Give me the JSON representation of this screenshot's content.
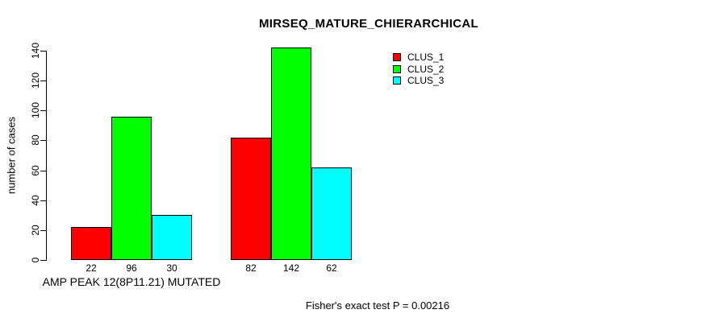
{
  "chart_data": {
    "type": "bar",
    "title": "MIRSEQ_MATURE_CHIERARCHICAL",
    "ylabel": "number of cases",
    "xlabel": "AMP PEAK 12(8P11.21) MUTATED",
    "annotation": "Fisher's exact test P = 0.00216",
    "categories": [
      "AMP PEAK 12(8P11.21) MUTATED",
      ""
    ],
    "series": [
      {
        "name": "CLUS_1",
        "color": "#FF0000",
        "values": [
          22,
          82
        ]
      },
      {
        "name": "CLUS_2",
        "color": "#00FF00",
        "values": [
          96,
          142
        ]
      },
      {
        "name": "CLUS_3",
        "color": "#00FFFF",
        "values": [
          30,
          62
        ]
      }
    ],
    "bar_labels": [
      [
        "22",
        "96",
        "30"
      ],
      [
        "82",
        "142",
        "62"
      ]
    ],
    "ylim": [
      0,
      140
    ],
    "yticks": [
      0,
      20,
      40,
      60,
      80,
      100,
      120,
      140
    ],
    "grid": false,
    "legend_position": "top-right",
    "bar_border_color": "#000000",
    "background_color": "#FFFFFF",
    "text_color": "#000000"
  }
}
